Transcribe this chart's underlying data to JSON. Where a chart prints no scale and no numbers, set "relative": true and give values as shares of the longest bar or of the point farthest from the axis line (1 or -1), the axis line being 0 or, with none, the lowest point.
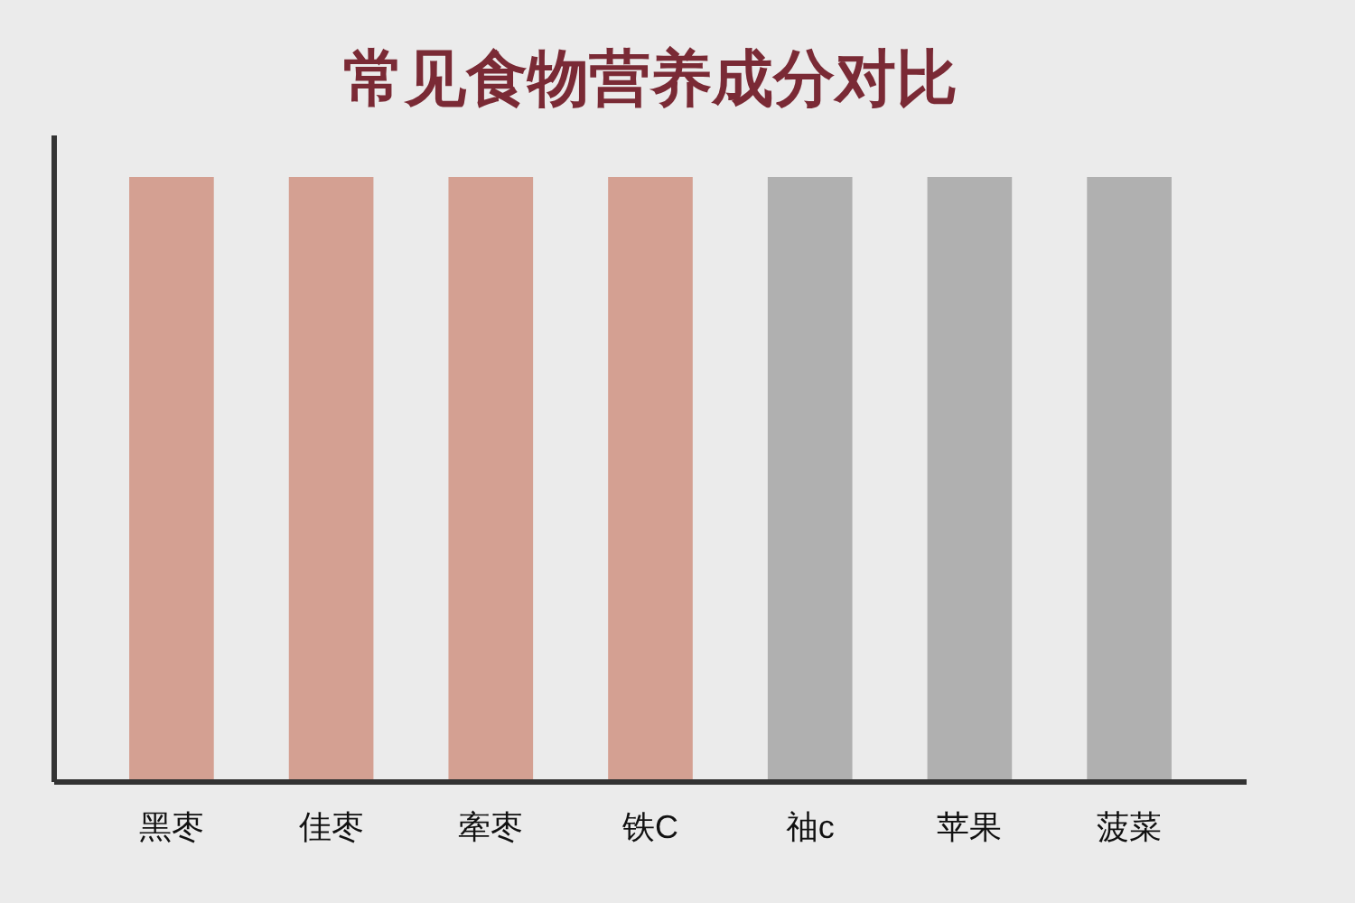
{
  "chart_data": {
    "type": "bar",
    "title": "常见食物营养成分对比",
    "categories": [
      "黑枣",
      "佳枣",
      "牽枣",
      "铁C",
      "䄂c",
      "苹果",
      "菠菜"
    ],
    "relative": true,
    "values": [
      1,
      1,
      1,
      1,
      1,
      1,
      1
    ],
    "colors": [
      "#d4a092",
      "#d4a092",
      "#d4a092",
      "#d4a092",
      "#b0b0b0",
      "#b0b0b0",
      "#b0b0b0"
    ]
  }
}
